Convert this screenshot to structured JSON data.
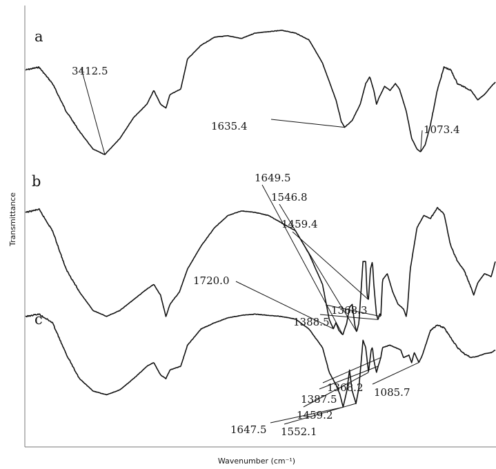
{
  "chart_data": {
    "type": "line",
    "xlabel": "Wavenumber (cm⁻¹)",
    "ylabel": "Transmittance",
    "series": [
      {
        "name": "a",
        "annotations": [
          "3412.5",
          "1635.4",
          "1073.4"
        ],
        "points": [
          [
            4000,
            0.7
          ],
          [
            3900,
            0.72
          ],
          [
            3800,
            0.6
          ],
          [
            3700,
            0.4
          ],
          [
            3600,
            0.25
          ],
          [
            3500,
            0.12
          ],
          [
            3412.5,
            0.08
          ],
          [
            3300,
            0.2
          ],
          [
            3200,
            0.35
          ],
          [
            3100,
            0.45
          ],
          [
            3050,
            0.55
          ],
          [
            3000,
            0.45
          ],
          [
            2960,
            0.42
          ],
          [
            2930,
            0.52
          ],
          [
            2850,
            0.56
          ],
          [
            2800,
            0.78
          ],
          [
            2700,
            0.88
          ],
          [
            2600,
            0.94
          ],
          [
            2500,
            0.95
          ],
          [
            2400,
            0.93
          ],
          [
            2300,
            0.97
          ],
          [
            2200,
            0.98
          ],
          [
            2100,
            0.99
          ],
          [
            2000,
            0.97
          ],
          [
            1900,
            0.92
          ],
          [
            1800,
            0.75
          ],
          [
            1700,
            0.48
          ],
          [
            1660,
            0.32
          ],
          [
            1635.4,
            0.28
          ],
          [
            1580,
            0.33
          ],
          [
            1520,
            0.45
          ],
          [
            1480,
            0.6
          ],
          [
            1450,
            0.65
          ],
          [
            1420,
            0.55
          ],
          [
            1400,
            0.45
          ],
          [
            1380,
            0.5
          ],
          [
            1340,
            0.58
          ],
          [
            1300,
            0.55
          ],
          [
            1260,
            0.6
          ],
          [
            1230,
            0.56
          ],
          [
            1180,
            0.4
          ],
          [
            1140,
            0.2
          ],
          [
            1100,
            0.12
          ],
          [
            1073.4,
            0.1
          ],
          [
            1040,
            0.15
          ],
          [
            1000,
            0.3
          ],
          [
            950,
            0.55
          ],
          [
            900,
            0.72
          ],
          [
            850,
            0.7
          ],
          [
            800,
            0.6
          ],
          [
            700,
            0.55
          ],
          [
            650,
            0.48
          ],
          [
            600,
            0.52
          ],
          [
            550,
            0.58
          ],
          [
            520,
            0.61
          ]
        ]
      },
      {
        "name": "b",
        "annotations": [
          "1720.0",
          "1649.5",
          "1546.8",
          "1459.4",
          "1388.5",
          "1368.3"
        ],
        "points": [
          [
            4000,
            0.82
          ],
          [
            3900,
            0.84
          ],
          [
            3800,
            0.7
          ],
          [
            3700,
            0.45
          ],
          [
            3600,
            0.3
          ],
          [
            3500,
            0.18
          ],
          [
            3400,
            0.14
          ],
          [
            3300,
            0.18
          ],
          [
            3200,
            0.25
          ],
          [
            3100,
            0.32
          ],
          [
            3050,
            0.35
          ],
          [
            3000,
            0.28
          ],
          [
            2960,
            0.14
          ],
          [
            2930,
            0.22
          ],
          [
            2860,
            0.3
          ],
          [
            2800,
            0.45
          ],
          [
            2700,
            0.6
          ],
          [
            2600,
            0.72
          ],
          [
            2500,
            0.8
          ],
          [
            2400,
            0.83
          ],
          [
            2300,
            0.82
          ],
          [
            2200,
            0.8
          ],
          [
            2100,
            0.75
          ],
          [
            2000,
            0.7
          ],
          [
            1900,
            0.55
          ],
          [
            1800,
            0.35
          ],
          [
            1750,
            0.12
          ],
          [
            1720,
            0.06
          ],
          [
            1700,
            0.1
          ],
          [
            1680,
            0.05
          ],
          [
            1649.5,
            0.02
          ],
          [
            1620,
            0.1
          ],
          [
            1600,
            0.2
          ],
          [
            1580,
            0.22
          ],
          [
            1560,
            0.08
          ],
          [
            1546.8,
            0.04
          ],
          [
            1530,
            0.1
          ],
          [
            1500,
            0.5
          ],
          [
            1480,
            0.5
          ],
          [
            1470,
            0.28
          ],
          [
            1459.4,
            0.25
          ],
          [
            1445,
            0.45
          ],
          [
            1430,
            0.5
          ],
          [
            1420,
            0.35
          ],
          [
            1400,
            0.15
          ],
          [
            1388.5,
            0.12
          ],
          [
            1375,
            0.16
          ],
          [
            1368.3,
            0.14
          ],
          [
            1355,
            0.38
          ],
          [
            1320,
            0.42
          ],
          [
            1280,
            0.3
          ],
          [
            1240,
            0.22
          ],
          [
            1200,
            0.19
          ],
          [
            1180,
            0.14
          ],
          [
            1170,
            0.2
          ],
          [
            1150,
            0.45
          ],
          [
            1100,
            0.72
          ],
          [
            1050,
            0.8
          ],
          [
            1000,
            0.78
          ],
          [
            950,
            0.85
          ],
          [
            900,
            0.81
          ],
          [
            850,
            0.6
          ],
          [
            800,
            0.5
          ],
          [
            750,
            0.44
          ],
          [
            700,
            0.33
          ],
          [
            680,
            0.28
          ],
          [
            650,
            0.36
          ],
          [
            600,
            0.42
          ],
          [
            550,
            0.4
          ],
          [
            520,
            0.5
          ]
        ]
      },
      {
        "name": "c",
        "annotations": [
          "1647.5",
          "1552.1",
          "1459.2",
          "1387.5",
          "1368.2",
          "1085.7"
        ],
        "points": [
          [
            4000,
            0.95
          ],
          [
            3900,
            0.97
          ],
          [
            3800,
            0.9
          ],
          [
            3700,
            0.65
          ],
          [
            3600,
            0.45
          ],
          [
            3500,
            0.35
          ],
          [
            3400,
            0.32
          ],
          [
            3300,
            0.36
          ],
          [
            3200,
            0.45
          ],
          [
            3100,
            0.55
          ],
          [
            3050,
            0.58
          ],
          [
            3000,
            0.48
          ],
          [
            2960,
            0.45
          ],
          [
            2930,
            0.52
          ],
          [
            2850,
            0.55
          ],
          [
            2800,
            0.72
          ],
          [
            2700,
            0.85
          ],
          [
            2600,
            0.9
          ],
          [
            2500,
            0.94
          ],
          [
            2400,
            0.96
          ],
          [
            2300,
            0.97
          ],
          [
            2200,
            0.96
          ],
          [
            2100,
            0.95
          ],
          [
            2000,
            0.93
          ],
          [
            1900,
            0.85
          ],
          [
            1800,
            0.7
          ],
          [
            1750,
            0.5
          ],
          [
            1700,
            0.4
          ],
          [
            1670,
            0.32
          ],
          [
            1647.5,
            0.22
          ],
          [
            1620,
            0.35
          ],
          [
            1600,
            0.52
          ],
          [
            1580,
            0.35
          ],
          [
            1552.1,
            0.25
          ],
          [
            1530,
            0.38
          ],
          [
            1500,
            0.76
          ],
          [
            1480,
            0.7
          ],
          [
            1459.2,
            0.5
          ],
          [
            1440,
            0.68
          ],
          [
            1430,
            0.7
          ],
          [
            1420,
            0.6
          ],
          [
            1400,
            0.5
          ],
          [
            1387.5,
            0.55
          ],
          [
            1368.2,
            0.62
          ],
          [
            1355,
            0.7
          ],
          [
            1300,
            0.72
          ],
          [
            1260,
            0.7
          ],
          [
            1220,
            0.68
          ],
          [
            1200,
            0.62
          ],
          [
            1180,
            0.63
          ],
          [
            1160,
            0.64
          ],
          [
            1140,
            0.58
          ],
          [
            1120,
            0.66
          ],
          [
            1085.7,
            0.58
          ],
          [
            1060,
            0.64
          ],
          [
            1000,
            0.84
          ],
          [
            950,
            0.88
          ],
          [
            900,
            0.86
          ],
          [
            850,
            0.78
          ],
          [
            800,
            0.7
          ],
          [
            750,
            0.65
          ],
          [
            700,
            0.62
          ],
          [
            650,
            0.63
          ],
          [
            600,
            0.65
          ],
          [
            550,
            0.66
          ],
          [
            520,
            0.68
          ]
        ]
      }
    ]
  }
}
